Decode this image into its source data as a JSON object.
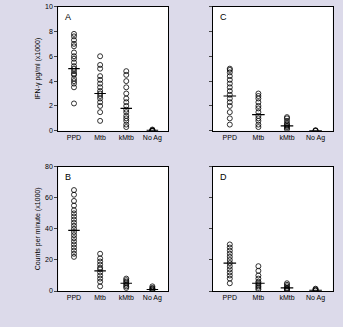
{
  "chart_data": [
    {
      "type": "scatter",
      "title": "A",
      "y_label": "IFN-γ pg/ml (x1000)",
      "categories": [
        "PPD",
        "Mtb",
        "kMtb",
        "No Ag"
      ],
      "values": [
        [
          2.2,
          3.5,
          3.8,
          4.0,
          4.2,
          4.5,
          4.6,
          4.8,
          5.0,
          5.2,
          5.5,
          5.8,
          6.0,
          6.3,
          6.8,
          7.0,
          7.3,
          7.6,
          7.8
        ],
        [
          0.8,
          1.5,
          2.0,
          2.3,
          2.6,
          2.8,
          3.0,
          3.2,
          3.5,
          3.8,
          4.1,
          4.4,
          5.0,
          5.3,
          6.0
        ],
        [
          0.3,
          0.5,
          0.8,
          1.0,
          1.2,
          1.5,
          1.7,
          2.0,
          2.3,
          2.6,
          3.0,
          3.5,
          4.0,
          4.5,
          4.8
        ],
        [
          0,
          0,
          0,
          0.05,
          0.1
        ]
      ],
      "means": [
        5.0,
        3.0,
        1.8,
        0.03
      ],
      "ylim": [
        0,
        10
      ],
      "yticks": [
        0,
        2,
        4,
        6,
        8,
        10
      ],
      "color": "#000000",
      "marker": "open circle",
      "grid": false
    },
    {
      "type": "scatter",
      "title": "B",
      "y_label": "Counts per minute (x1000)",
      "categories": [
        "PPD",
        "Mtb",
        "kMtb",
        "No Ag"
      ],
      "values": [
        [
          22,
          24,
          26,
          28,
          30,
          32,
          34,
          36,
          38,
          40,
          42,
          44,
          46,
          48,
          50,
          52,
          55,
          58,
          62,
          65
        ],
        [
          3,
          6,
          8,
          10,
          12,
          14,
          15,
          17,
          19,
          21,
          24
        ],
        [
          2,
          3,
          4,
          5,
          6,
          7,
          8
        ],
        [
          0.5,
          1,
          1.5,
          2,
          3
        ]
      ],
      "means": [
        39,
        13,
        5,
        1
      ],
      "ylim": [
        0,
        80
      ],
      "yticks": [
        0,
        20,
        40,
        60,
        80
      ],
      "color": "#000000",
      "marker": "open circle",
      "grid": false
    },
    {
      "type": "scatter",
      "title": "C",
      "categories": [
        "PPD",
        "Mtb",
        "kMtb",
        "No Ag"
      ],
      "values": [
        [
          0.5,
          1.0,
          1.5,
          2.0,
          2.3,
          2.6,
          2.9,
          3.2,
          3.5,
          3.8,
          4.1,
          4.4,
          4.7,
          4.9,
          5.0
        ],
        [
          0.3,
          0.5,
          0.8,
          1.0,
          1.2,
          1.5,
          1.8,
          2.0,
          2.3,
          2.6,
          2.8,
          3.0
        ],
        [
          0.1,
          0.2,
          0.3,
          0.4,
          0.5,
          0.6,
          0.8,
          1.0,
          1.1
        ],
        [
          0,
          0,
          0.05
        ]
      ],
      "means": [
        2.8,
        1.3,
        0.4,
        0.02
      ],
      "ylim": [
        0,
        10
      ],
      "yticks": [
        0,
        2,
        4,
        6,
        8,
        10
      ],
      "tick_labels": "x",
      "color": "#000000",
      "marker": "open circle",
      "grid": false
    },
    {
      "type": "scatter",
      "title": "D",
      "categories": [
        "PPD",
        "Mtb",
        "kMtb",
        "No Ag"
      ],
      "values": [
        [
          5,
          8,
          10,
          12,
          14,
          16,
          18,
          20,
          22,
          24,
          26,
          28,
          30
        ],
        [
          1,
          2,
          3,
          4,
          5,
          6,
          8,
          10,
          13,
          16
        ],
        [
          0.5,
          1,
          1.5,
          2,
          3,
          4,
          5
        ],
        [
          0.3,
          0.5,
          1,
          1.5
        ]
      ],
      "means": [
        18,
        5,
        2,
        0.5
      ],
      "ylim": [
        0,
        80
      ],
      "yticks": [
        0,
        20,
        40,
        60,
        80
      ],
      "tick_labels": "x",
      "color": "#000000",
      "marker": "open circle",
      "grid": false
    }
  ]
}
